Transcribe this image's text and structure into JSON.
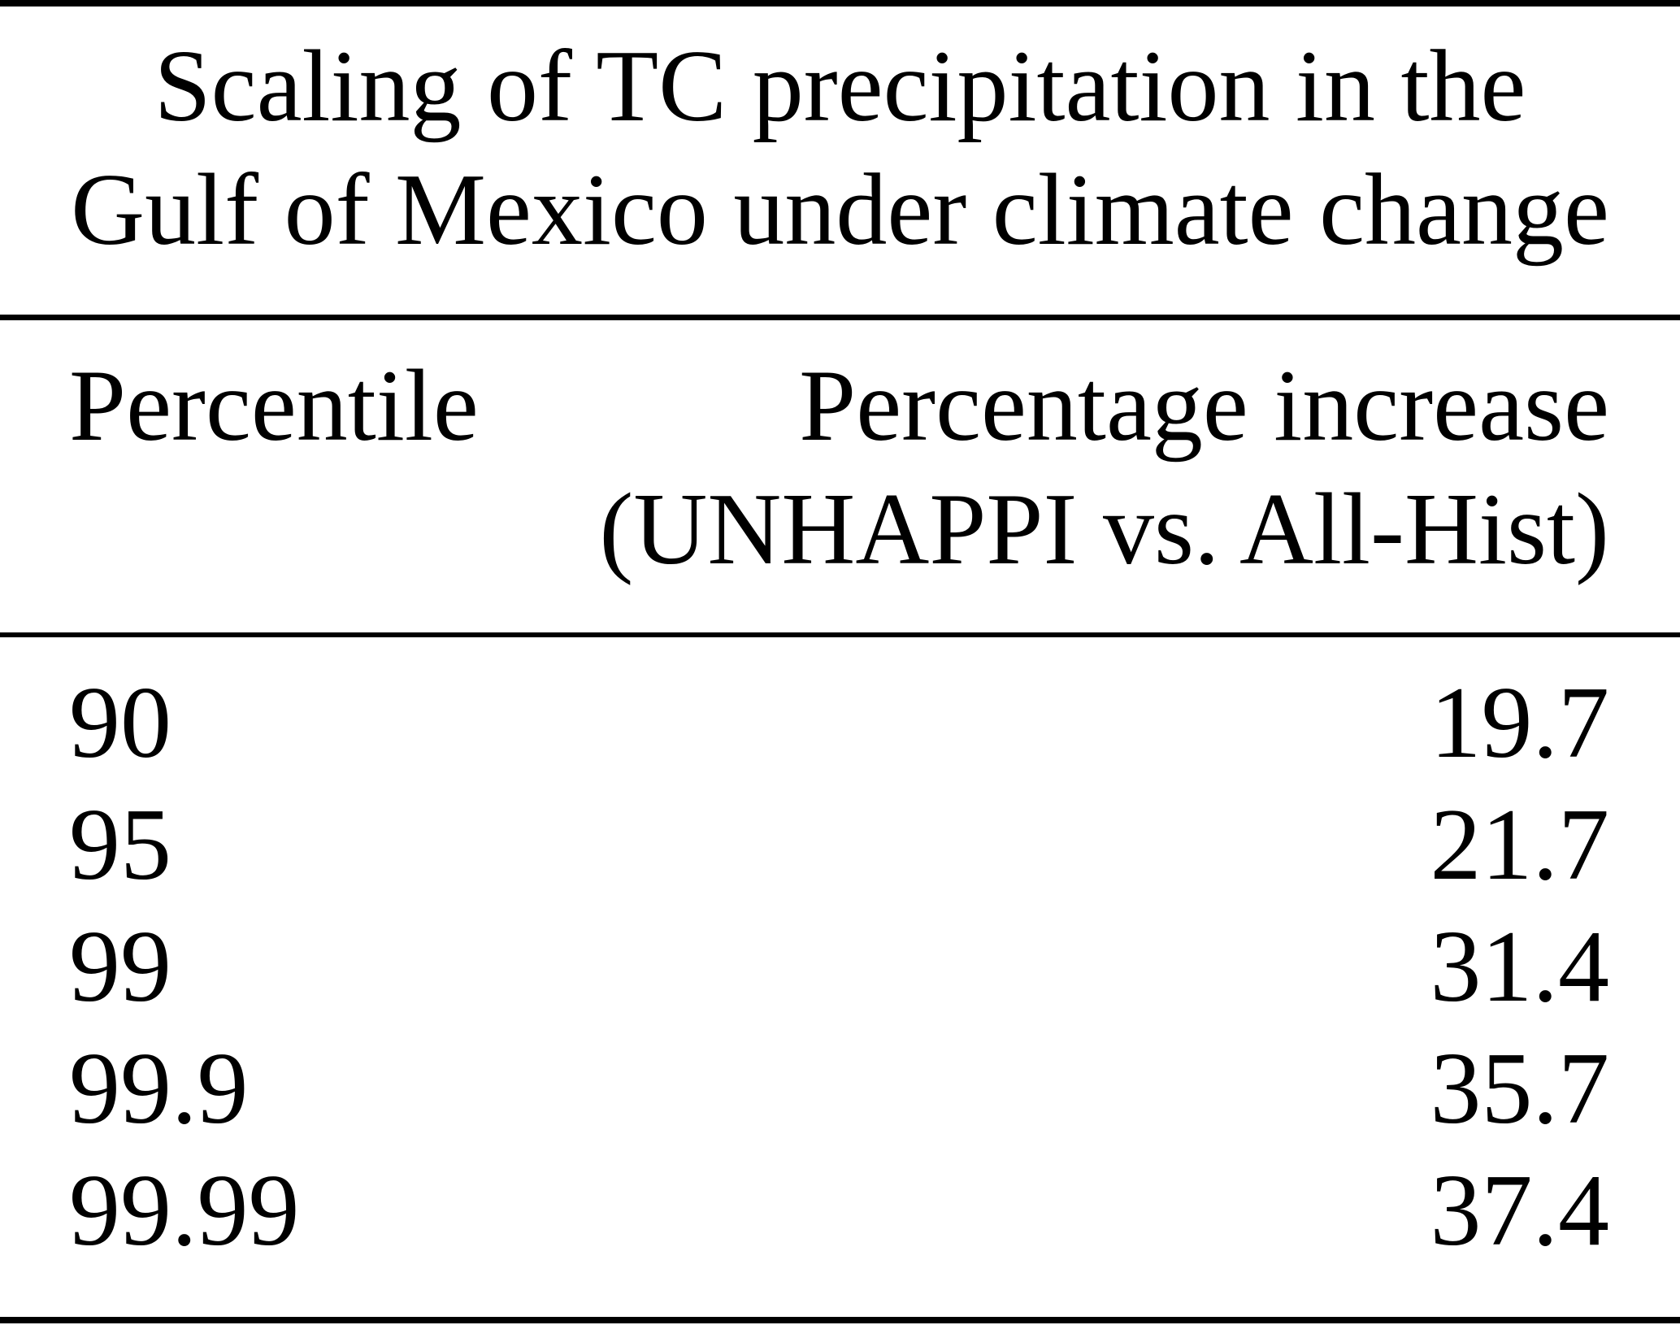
{
  "table": {
    "title_line1": "Scaling of TC precipitation in the",
    "title_line2": "Gulf of Mexico under climate change",
    "columns": {
      "left": "Percentile",
      "right_line1": "Percentage increase",
      "right_line2": "(UNHAPPI vs. All-Hist)"
    },
    "rows": [
      {
        "percentile": "90",
        "increase": "19.7"
      },
      {
        "percentile": "95",
        "increase": "21.7"
      },
      {
        "percentile": "99",
        "increase": "31.4"
      },
      {
        "percentile": "99.9",
        "increase": "35.7"
      },
      {
        "percentile": "99.99",
        "increase": "37.4"
      }
    ]
  },
  "colors": {
    "background": "#ffffff",
    "text": "#000000",
    "rule": "#000000"
  }
}
